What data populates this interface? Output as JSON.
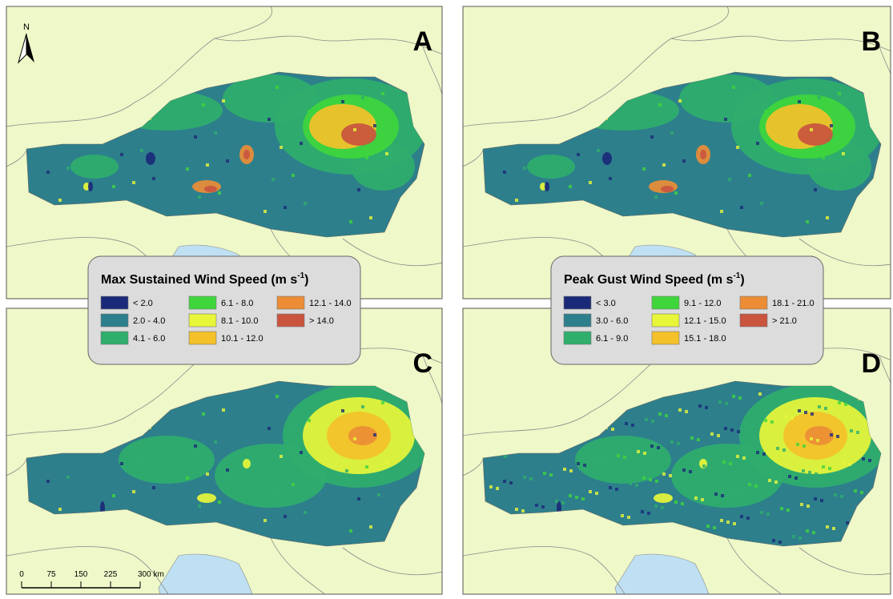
{
  "panels": [
    {
      "letter": "A"
    },
    {
      "letter": "B"
    },
    {
      "letter": "C"
    },
    {
      "letter": "D"
    }
  ],
  "north_arrow": "N",
  "scale_bar": [
    "0",
    "75",
    "150",
    "225",
    "300 km"
  ],
  "legends": [
    {
      "title": "Max Sustained Wind Speed (m s",
      "title_sup": "-1",
      "title_end": ")",
      "items": [
        {
          "label": "< 2.0",
          "color": "#1b2a78"
        },
        {
          "label": "2.0 - 4.0",
          "color": "#2d7f8c"
        },
        {
          "label": "4.1 - 6.0",
          "color": "#2fae6c"
        },
        {
          "label": "6.1 - 8.0",
          "color": "#3fd63c"
        },
        {
          "label": "8.1 - 10.0",
          "color": "#e8f63a"
        },
        {
          "label": "10.1 - 12.0",
          "color": "#f4c12a"
        },
        {
          "label": "12.1 - 14.0",
          "color": "#ec8d36"
        },
        {
          "label": "> 14.0",
          "color": "#c9553f"
        }
      ]
    },
    {
      "title": "Peak Gust Wind Speed (m s",
      "title_sup": "-1",
      "title_end": ")",
      "items": [
        {
          "label": "< 3.0",
          "color": "#1b2a78"
        },
        {
          "label": "3.0 - 6.0",
          "color": "#2d7f8c"
        },
        {
          "label": "6.1 - 9.0",
          "color": "#2fae6c"
        },
        {
          "label": "9.1 - 12.0",
          "color": "#3fd63c"
        },
        {
          "label": "12.1 - 15.0",
          "color": "#e8f63a"
        },
        {
          "label": "15.1 - 18.0",
          "color": "#f4c12a"
        },
        {
          "label": "18.1 - 21.0",
          "color": "#ec8d36"
        },
        {
          "label": "> 21.0",
          "color": "#c9553f"
        }
      ]
    }
  ]
}
